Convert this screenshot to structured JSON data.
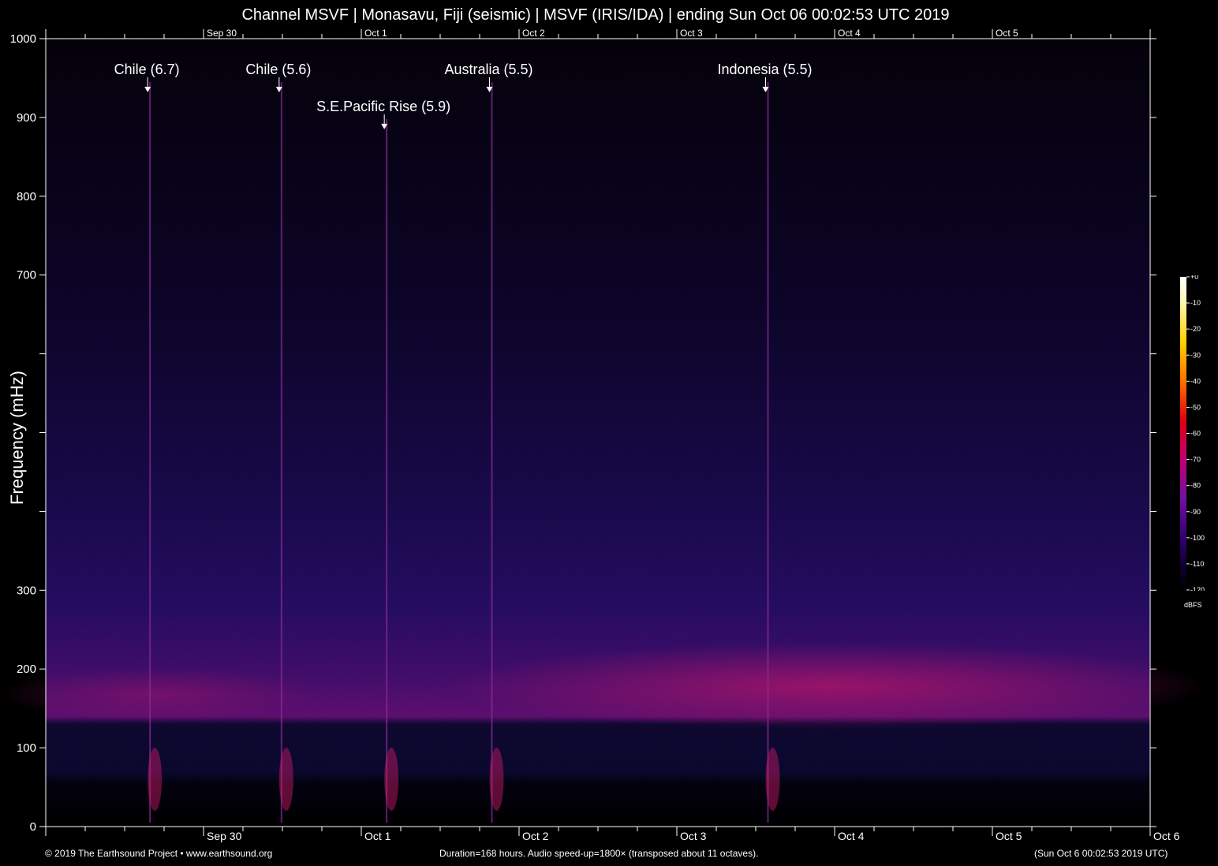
{
  "title": "Channel MSVF | Monasavu, Fiji (seismic) | MSVF (IRIS/IDA) | ending Sun Oct 06 00:02:53 UTC 2019",
  "footer": {
    "copyright": "© 2019 The Earthsound Project • www.earthsound.org",
    "duration": "Duration=168 hours. Audio speed-up=1800× (transposed about 11 octaves).",
    "end_time": "(Sun Oct  6 00:02:53 2019 UTC)"
  },
  "colors": {
    "background": "#000000",
    "text": "#ffffff",
    "axis": "#ffffff"
  },
  "chart_data": {
    "type": "heatmap",
    "title": "Channel MSVF | Monasavu, Fiji (seismic) | MSVF (IRIS/IDA) | ending Sun Oct 06 00:02:53 UTC 2019",
    "ylabel": "Frequency (mHz)",
    "xlabel": "",
    "ylim": [
      0,
      1000
    ],
    "y_tick_labels": [
      "0",
      "100",
      "200",
      "300",
      "700",
      "800",
      "900",
      "1000"
    ],
    "y_tick_values": [
      0,
      100,
      200,
      300,
      700,
      800,
      900,
      1000
    ],
    "y_ticks_unlabeled": [
      400,
      500,
      600
    ],
    "x_range_hours": [
      0,
      168
    ],
    "x_tick_labels": [
      "Sep 30",
      "Oct 1",
      "Oct 2",
      "Oct 3",
      "Oct 4",
      "Oct 5",
      "Oct 6"
    ],
    "x_tick_hours": [
      24,
      48,
      72,
      96,
      120,
      144,
      168
    ],
    "x_top_tick_labels": [
      "Sep 30",
      "Oct 1",
      "Oct 2",
      "Oct 3",
      "Oct 4",
      "Oct 5"
    ],
    "events": [
      {
        "label": "Chile (6.7)",
        "hour": 15.5,
        "freq": 945
      },
      {
        "label": "Chile (5.6)",
        "hour": 35.5,
        "freq": 945
      },
      {
        "label": "S.E.Pacific Rise (5.9)",
        "hour": 51.5,
        "freq": 898
      },
      {
        "label": "Australia (5.5)",
        "hour": 67.5,
        "freq": 945
      },
      {
        "label": "Indonesia (5.5)",
        "hour": 109.5,
        "freq": 945
      }
    ],
    "colorbar": {
      "unit": "dBFS",
      "range": [
        -120,
        0
      ],
      "tick_labels": [
        "+0",
        "-10",
        "-20",
        "-30",
        "-40",
        "-50",
        "-60",
        "-70",
        "-80",
        "-90",
        "-100",
        "-110",
        "-120"
      ],
      "stops": [
        {
          "db": 0,
          "color": "#ffffff"
        },
        {
          "db": -10,
          "color": "#fff8b0"
        },
        {
          "db": -25,
          "color": "#ffd000"
        },
        {
          "db": -40,
          "color": "#ff7000"
        },
        {
          "db": -55,
          "color": "#e00010"
        },
        {
          "db": -70,
          "color": "#c00070"
        },
        {
          "db": -85,
          "color": "#7010a0"
        },
        {
          "db": -100,
          "color": "#300070"
        },
        {
          "db": -110,
          "color": "#100030"
        },
        {
          "db": -120,
          "color": "#000000"
        }
      ]
    }
  }
}
